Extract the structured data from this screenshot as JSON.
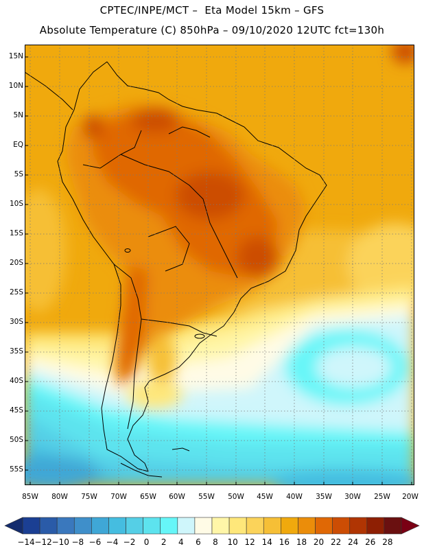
{
  "header": {
    "line1": "CPTEC/INPE/MCT –  Eta Model 15km – GFS",
    "line2": "Absolute Temperature (C) 850hPa – 09/10/2020 12UTC fct=130h"
  },
  "map": {
    "lat_labels": [
      "15N",
      "10N",
      "5N",
      "EQ",
      "5S",
      "10S",
      "15S",
      "20S",
      "25S",
      "30S",
      "35S",
      "40S",
      "45S",
      "50S",
      "55S"
    ],
    "lon_labels": [
      "85W",
      "80W",
      "75W",
      "70W",
      "65W",
      "60W",
      "55W",
      "50W",
      "45W",
      "40W",
      "35W",
      "30W",
      "25W",
      "20W"
    ]
  },
  "colorbar": {
    "labels": [
      "-14",
      "-12",
      "-10",
      "-8",
      "-6",
      "-4",
      "-2",
      "0",
      "2",
      "4",
      "6",
      "8",
      "10",
      "12",
      "14",
      "16",
      "18",
      "20",
      "22",
      "24",
      "26",
      "28"
    ],
    "colors": [
      "#1b3f93",
      "#2a5ba8",
      "#3a78bd",
      "#3f8fca",
      "#3fa7d6",
      "#45bde0",
      "#55cfe6",
      "#5de3ee",
      "#66f6f8",
      "#cff6fb",
      "#fffbe6",
      "#fff6a8",
      "#fee77a",
      "#fbd35a",
      "#f6bf36",
      "#f0a90d",
      "#eb8d0a",
      "#e06805",
      "#cc4d04",
      "#b03503",
      "#8e1f03",
      "#6a1010"
    ],
    "under_color": "#142c6e",
    "over_color": "#7a0014"
  }
}
